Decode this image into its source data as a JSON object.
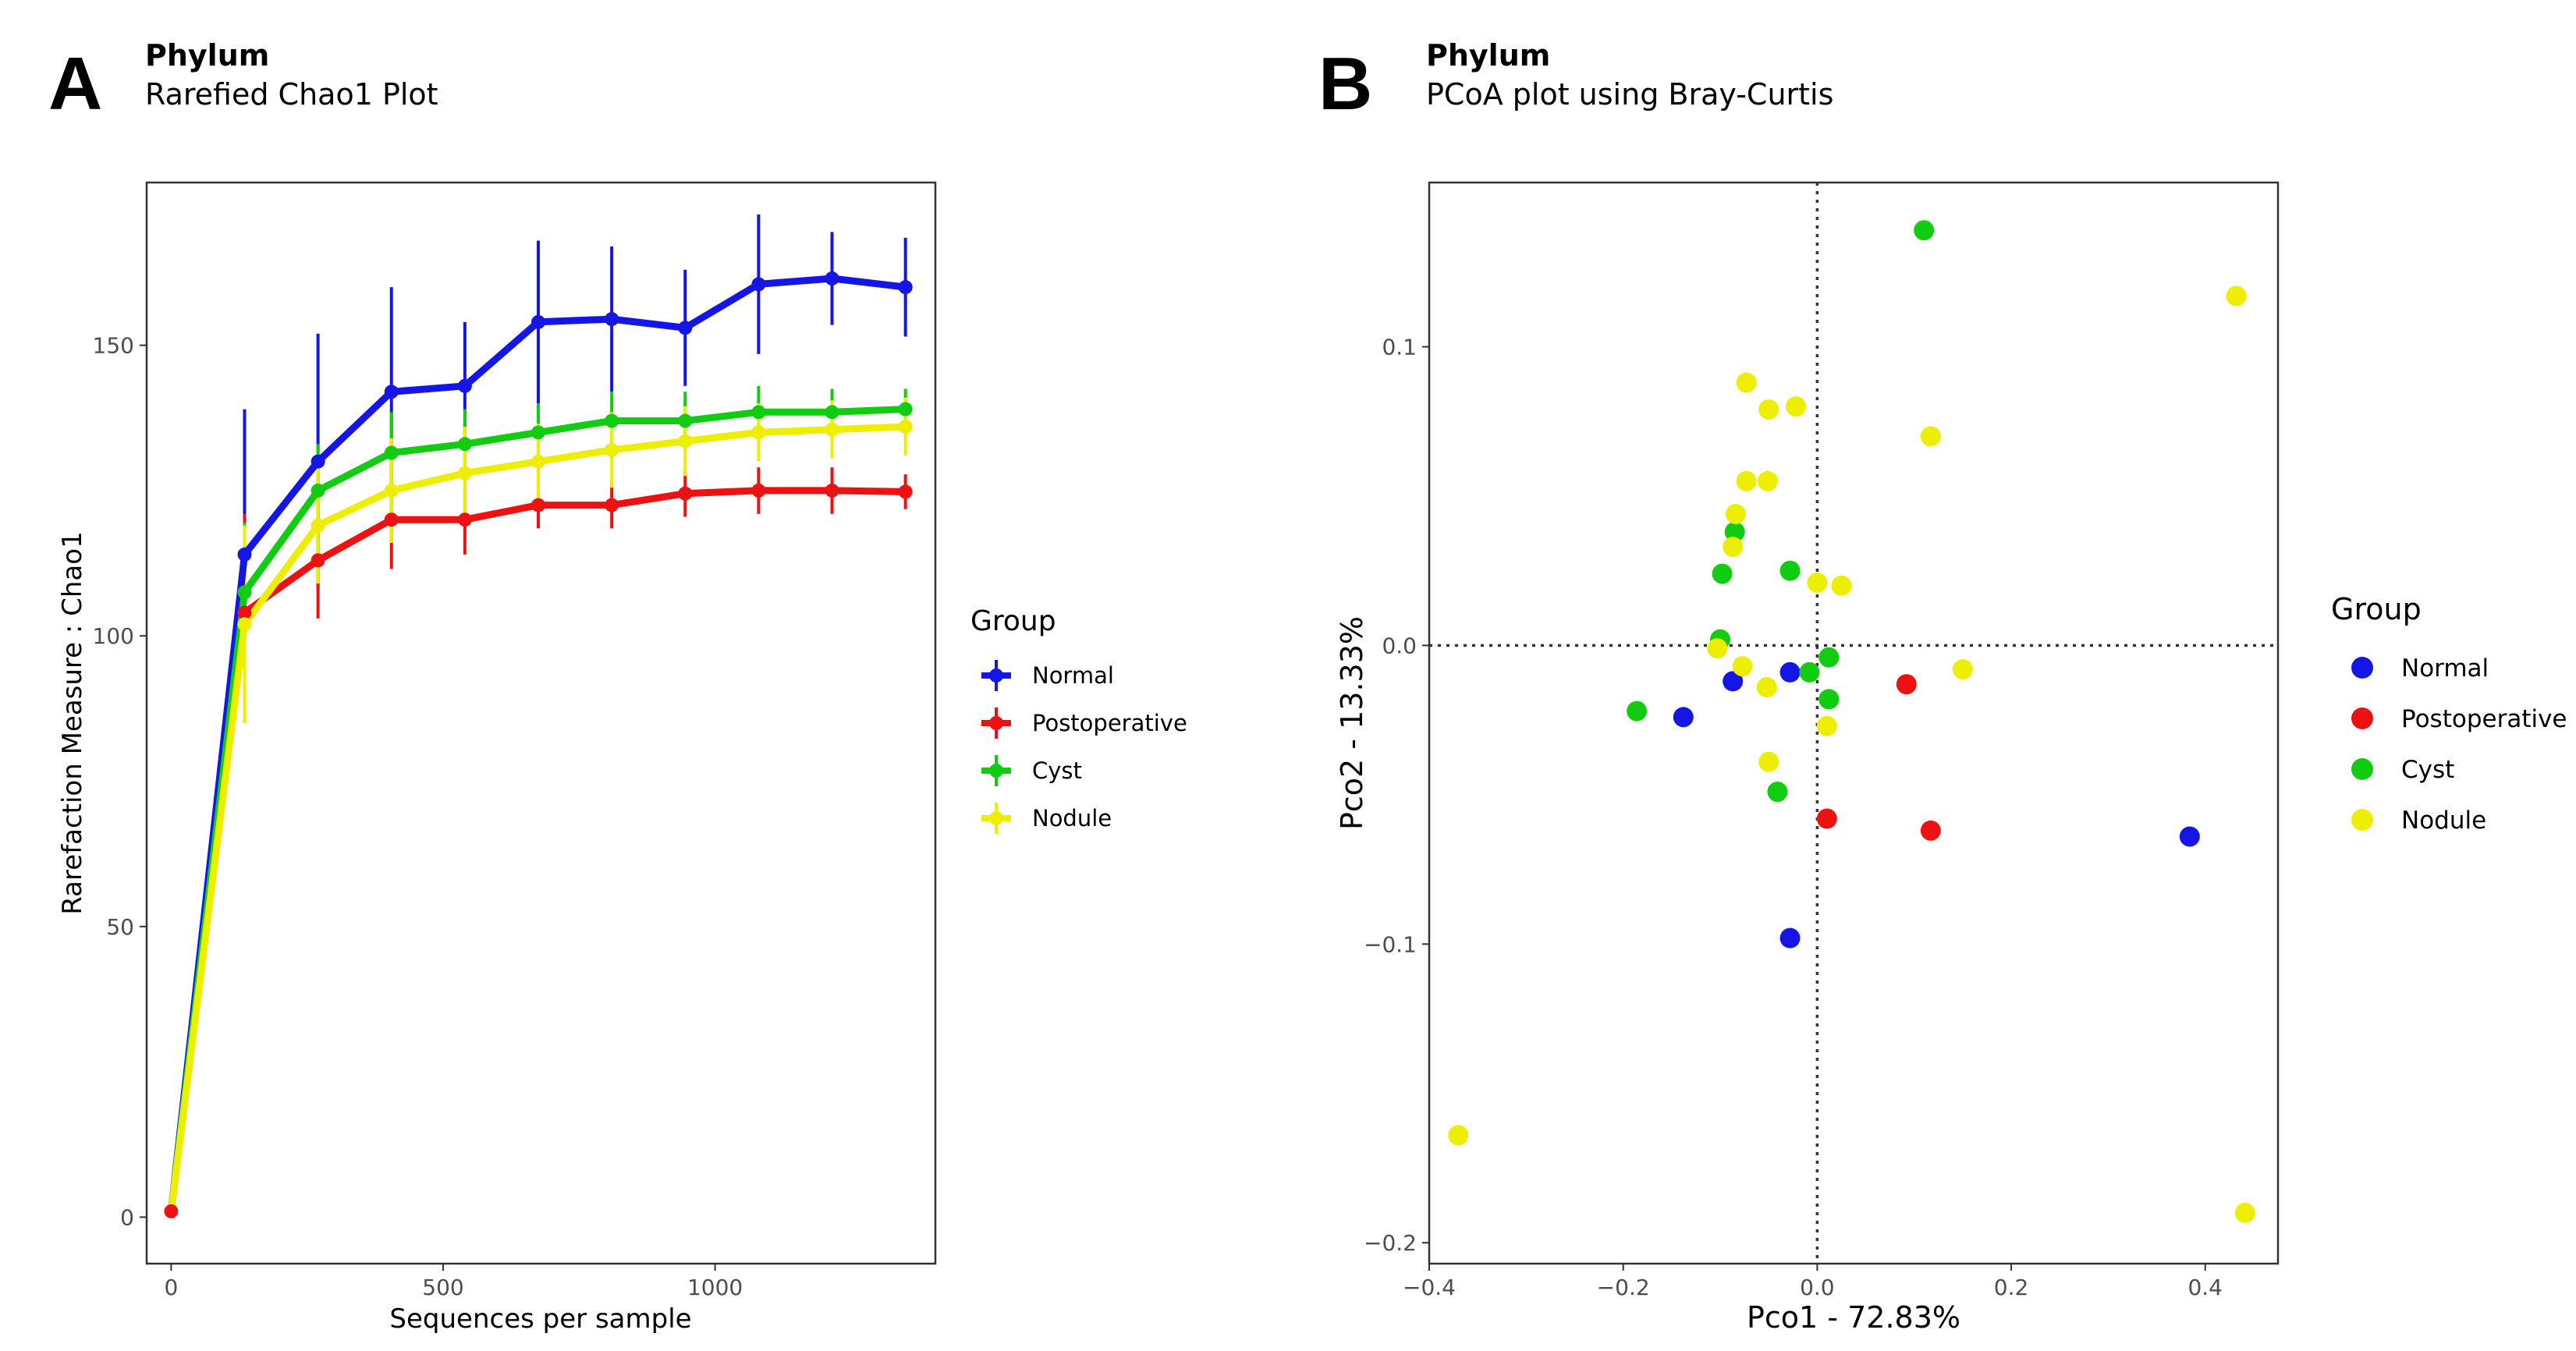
{
  "panels": {
    "a": {
      "letter": "A",
      "heading": "Phylum",
      "subheading": "Rarefied Chao1 Plot",
      "legend_title": "Group"
    },
    "b": {
      "letter": "B",
      "heading": "Phylum",
      "subheading": "PCoA plot using Bray-Curtis",
      "legend_title": "Group"
    }
  },
  "colors": {
    "Normal": "#1515e6",
    "Postoperative": "#ee1111",
    "Cyst": "#11cc11",
    "Nodule": "#eeee00"
  },
  "chart_data": [
    {
      "type": "line",
      "title": "Rarefied Chao1 Plot",
      "xlabel": "Sequences per sample",
      "ylabel": "Rarefaction Measure : Chao1",
      "xlim": [
        -45,
        1405
      ],
      "ylim": [
        -8,
        178
      ],
      "xticks": [
        0,
        500,
        1000
      ],
      "xtick_labels": [
        "0",
        "500",
        "1000"
      ],
      "yticks": [
        0,
        50,
        100,
        150
      ],
      "ytick_labels": [
        "0",
        "50",
        "100",
        "150"
      ],
      "grid": false,
      "legend_position": "right",
      "x": [
        0,
        135,
        270,
        405,
        540,
        675,
        810,
        945,
        1080,
        1215,
        1350
      ],
      "series": [
        {
          "name": "Normal",
          "values": [
            1,
            114,
            130,
            142,
            143,
            154,
            154.5,
            153,
            160.5,
            161.5,
            160
          ],
          "error": [
            0,
            25,
            22,
            18,
            11,
            14,
            12.5,
            10,
            12,
            8,
            8.5
          ]
        },
        {
          "name": "Postoperative",
          "values": [
            1,
            104,
            113,
            120,
            120,
            122.5,
            122.5,
            124.5,
            125,
            125,
            124.8
          ],
          "error": [
            0,
            17,
            10,
            8.5,
            6,
            4,
            4,
            4,
            4,
            4,
            3
          ]
        },
        {
          "name": "Cyst",
          "values": [
            1,
            107.5,
            125,
            131.5,
            133,
            135,
            137,
            137,
            138.5,
            138.5,
            139
          ],
          "error": [
            0,
            12,
            8,
            7,
            6,
            5,
            5,
            5,
            4.5,
            4,
            3.5
          ]
        },
        {
          "name": "Nodule",
          "values": [
            1,
            102,
            119,
            125,
            128,
            130,
            132,
            133.5,
            135,
            135.5,
            136
          ],
          "error": [
            0,
            17,
            10,
            9,
            8,
            6.5,
            6.5,
            6,
            5,
            5,
            5
          ]
        }
      ]
    },
    {
      "type": "scatter",
      "title": "PCoA plot using Bray-Curtis",
      "xlabel": "Pco1 - 72.83%",
      "ylabel": "Pco2 - 13.33%",
      "xlim": [
        -0.4,
        0.475
      ],
      "ylim": [
        -0.207,
        0.155
      ],
      "xticks": [
        -0.4,
        -0.2,
        0.0,
        0.2,
        0.4
      ],
      "xtick_labels": [
        "−0.4",
        "−0.2",
        "0.0",
        "0.2",
        "0.4"
      ],
      "yticks": [
        -0.2,
        -0.1,
        0.0,
        0.1
      ],
      "ytick_labels": [
        "−0.2",
        "−0.1",
        "0.0",
        "0.1"
      ],
      "reference_lines": {
        "x": 0,
        "y": 0,
        "style": "dotted"
      },
      "grid": false,
      "legend_position": "right",
      "series": [
        {
          "name": "Normal",
          "points": [
            [
              -0.138,
              -0.024
            ],
            [
              -0.087,
              -0.012
            ],
            [
              -0.028,
              -0.009
            ],
            [
              -0.028,
              -0.098
            ],
            [
              0.384,
              -0.064
            ]
          ]
        },
        {
          "name": "Postoperative",
          "points": [
            [
              0.01,
              -0.058
            ],
            [
              0.092,
              -0.013
            ],
            [
              0.117,
              -0.062
            ]
          ]
        },
        {
          "name": "Cyst",
          "points": [
            [
              0.11,
              0.139
            ],
            [
              -0.085,
              0.038
            ],
            [
              -0.098,
              0.024
            ],
            [
              -0.028,
              0.025
            ],
            [
              -0.1,
              0.002
            ],
            [
              -0.186,
              -0.022
            ],
            [
              -0.008,
              -0.009
            ],
            [
              0.012,
              -0.004
            ],
            [
              0.012,
              -0.018
            ],
            [
              -0.041,
              -0.049
            ]
          ]
        },
        {
          "name": "Nodule",
          "points": [
            [
              0.432,
              0.117
            ],
            [
              -0.073,
              0.088
            ],
            [
              -0.05,
              0.079
            ],
            [
              -0.022,
              0.08
            ],
            [
              0.117,
              0.07
            ],
            [
              -0.073,
              0.055
            ],
            [
              -0.051,
              0.055
            ],
            [
              -0.084,
              0.044
            ],
            [
              -0.087,
              0.033
            ],
            [
              0.0,
              0.021
            ],
            [
              0.025,
              0.02
            ],
            [
              -0.103,
              -0.001
            ],
            [
              -0.077,
              -0.007
            ],
            [
              -0.052,
              -0.014
            ],
            [
              0.15,
              -0.008
            ],
            [
              0.01,
              -0.027
            ],
            [
              -0.05,
              -0.039
            ],
            [
              -0.37,
              -0.164
            ],
            [
              0.441,
              -0.19
            ]
          ]
        }
      ]
    }
  ]
}
